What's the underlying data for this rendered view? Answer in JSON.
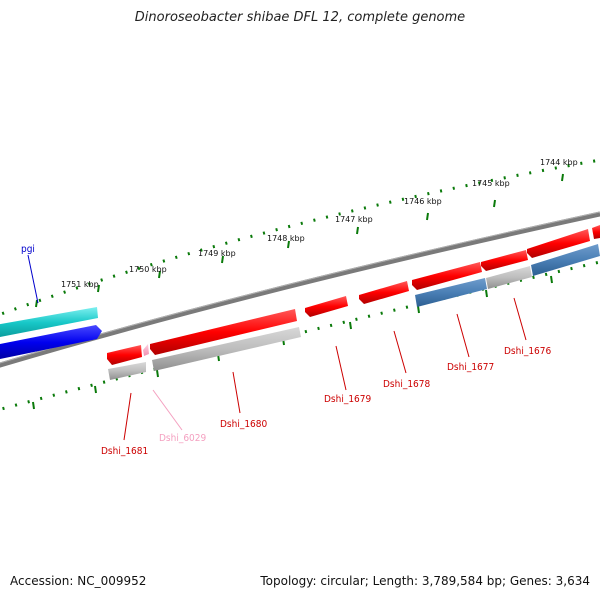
{
  "title": "Dinoroseobacter shibae DFL 12, complete genome",
  "footer": {
    "accession": "Accession: NC_009952",
    "summary": "Topology: circular; Length: 3,789,584 bp; Genes: 3,634"
  },
  "scale_labels": [
    "1744 kbp",
    "1745 kbp",
    "1746 kbp",
    "1747 kbp",
    "1748 kbp",
    "1749 kbp",
    "1750 kbp",
    "1751 kbp"
  ],
  "genes": [
    {
      "name": "pgi",
      "color": "#0000cc"
    },
    {
      "name": "Dshi_1681",
      "color": "#cc0000"
    },
    {
      "name": "Dshi_6029",
      "color": "#f4a0c0"
    },
    {
      "name": "Dshi_1680",
      "color": "#cc0000"
    },
    {
      "name": "Dshi_1679",
      "color": "#cc0000"
    },
    {
      "name": "Dshi_1678",
      "color": "#cc0000"
    },
    {
      "name": "Dshi_1677",
      "color": "#cc0000"
    },
    {
      "name": "Dshi_1676",
      "color": "#cc0000"
    }
  ]
}
